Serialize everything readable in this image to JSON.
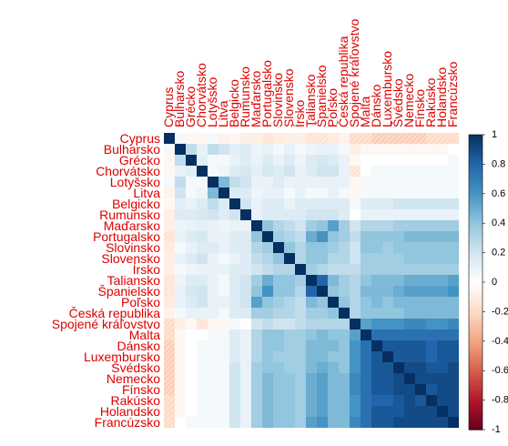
{
  "chart_data": {
    "type": "heatmap",
    "title": "",
    "labels": [
      "Cyprus",
      "Bulharsko",
      "Grécko",
      "Chorvátsko",
      "Lotyšsko",
      "Litva",
      "Belgicko",
      "Rumunsko",
      "Maďarsko",
      "Portugalsko",
      "Slovinsko",
      "Slovensko",
      "Írsko",
      "Taliansko",
      "Španielsko",
      "Poľsko",
      "Česká republika",
      "Spojené kráľovstvo",
      "Malta",
      "Dánsko",
      "Luxembursko",
      "Švédsko",
      "Nemecko",
      "Fínsko",
      "Rakúsko",
      "Holandsko",
      "Francúzsko"
    ],
    "value_range": [
      -1,
      1
    ],
    "color_scale": [
      "#67001f",
      "#b2182b",
      "#d6604d",
      "#f4a582",
      "#fddbc7",
      "#ffffff",
      "#d1e5f0",
      "#92c5de",
      "#4393c3",
      "#2166ac",
      "#053061"
    ],
    "legend_ticks": [
      "1",
      "0.8",
      "0.6",
      "0.4",
      "0.2",
      "0",
      "-0.2",
      "-0.4",
      "-0.6",
      "-0.8",
      "-1"
    ],
    "legend_placement": "right",
    "label_color": "#dd0000",
    "diagonal": 1,
    "lower_triangle_rows": [
      [],
      [
        0.05
      ],
      [
        -0.05,
        0.25
      ],
      [
        -0.05,
        0.1,
        0.12
      ],
      [
        0.05,
        0.25,
        0.05,
        0.05
      ],
      [
        -0.08,
        0.2,
        0.05,
        0.08,
        0.45
      ],
      [
        -0.05,
        0.12,
        0.1,
        0.15,
        0.25,
        0.15
      ],
      [
        -0.1,
        0.15,
        0.15,
        0.18,
        0.2,
        0.15,
        0.2
      ],
      [
        -0.1,
        0.08,
        0.1,
        0.12,
        0.1,
        0.08,
        0.1,
        0.1
      ],
      [
        -0.15,
        0.1,
        0.15,
        0.18,
        0.1,
        0.1,
        0.15,
        0.15,
        0.4
      ],
      [
        -0.12,
        0.05,
        0.1,
        0.15,
        0.15,
        0.1,
        0.15,
        0.15,
        0.3,
        0.35
      ],
      [
        -0.1,
        0.1,
        0.15,
        0.2,
        0.1,
        0.05,
        0.1,
        0.15,
        0.25,
        0.3,
        0.4
      ],
      [
        -0.1,
        0.05,
        0.08,
        0.1,
        0.1,
        0.1,
        0.15,
        0.15,
        0.2,
        0.25,
        0.3,
        0.3
      ],
      [
        -0.15,
        0.08,
        0.15,
        0.15,
        0.1,
        0.05,
        0.15,
        0.2,
        0.35,
        0.5,
        0.4,
        0.4,
        0.35
      ],
      [
        -0.15,
        0.1,
        0.18,
        0.2,
        0.1,
        0.05,
        0.15,
        0.2,
        0.4,
        0.6,
        0.4,
        0.4,
        0.3,
        0.8
      ],
      [
        -0.12,
        0.1,
        0.15,
        0.2,
        0.1,
        0.1,
        0.15,
        0.2,
        0.55,
        0.4,
        0.35,
        0.3,
        0.25,
        0.45,
        0.4
      ],
      [
        -0.08,
        0.05,
        0.1,
        0.1,
        0.1,
        0.05,
        0.15,
        0.15,
        0.35,
        0.35,
        0.3,
        0.3,
        0.25,
        0.35,
        0.35,
        0.4
      ],
      [
        -0.2,
        -0.1,
        -0.05,
        -0.15,
        -0.05,
        -0.05,
        0.05,
        0.0,
        0.2,
        0.25,
        0.2,
        0.2,
        0.25,
        0.3,
        0.3,
        0.3,
        0.3
      ],
      [
        -0.2,
        -0.05,
        0.0,
        0.0,
        0.05,
        0.05,
        0.15,
        0.1,
        0.3,
        0.4,
        0.4,
        0.35,
        0.35,
        0.4,
        0.45,
        0.4,
        0.4,
        0.55
      ],
      [
        -0.25,
        -0.05,
        0.0,
        0.05,
        0.05,
        0.05,
        0.15,
        0.1,
        0.3,
        0.4,
        0.4,
        0.35,
        0.35,
        0.45,
        0.45,
        0.45,
        0.4,
        0.6,
        0.75
      ],
      [
        -0.25,
        -0.05,
        0.0,
        0.05,
        0.05,
        0.05,
        0.15,
        0.1,
        0.3,
        0.4,
        0.35,
        0.35,
        0.35,
        0.45,
        0.45,
        0.4,
        0.4,
        0.6,
        0.75,
        0.85
      ],
      [
        -0.25,
        -0.05,
        0.0,
        0.05,
        0.05,
        0.05,
        0.2,
        0.1,
        0.35,
        0.4,
        0.4,
        0.35,
        0.35,
        0.45,
        0.5,
        0.45,
        0.4,
        0.6,
        0.75,
        0.85,
        0.85
      ],
      [
        -0.25,
        -0.05,
        0.0,
        0.05,
        0.05,
        0.05,
        0.2,
        0.1,
        0.35,
        0.45,
        0.4,
        0.4,
        0.35,
        0.5,
        0.55,
        0.45,
        0.45,
        0.65,
        0.75,
        0.85,
        0.85,
        0.9
      ],
      [
        -0.25,
        -0.05,
        0.0,
        0.05,
        0.05,
        0.05,
        0.2,
        0.1,
        0.35,
        0.45,
        0.4,
        0.4,
        0.35,
        0.5,
        0.55,
        0.45,
        0.45,
        0.65,
        0.75,
        0.85,
        0.85,
        0.9,
        0.9
      ],
      [
        -0.2,
        -0.05,
        0.0,
        0.05,
        0.05,
        0.05,
        0.2,
        0.1,
        0.35,
        0.45,
        0.4,
        0.4,
        0.35,
        0.5,
        0.55,
        0.45,
        0.45,
        0.6,
        0.75,
        0.8,
        0.8,
        0.85,
        0.9,
        0.85
      ],
      [
        -0.2,
        -0.05,
        0.0,
        0.05,
        0.05,
        0.05,
        0.2,
        0.1,
        0.35,
        0.45,
        0.4,
        0.4,
        0.35,
        0.5,
        0.55,
        0.45,
        0.45,
        0.6,
        0.75,
        0.85,
        0.85,
        0.85,
        0.9,
        0.9,
        0.9
      ],
      [
        -0.2,
        0.0,
        0.05,
        0.05,
        0.05,
        0.05,
        0.2,
        0.1,
        0.35,
        0.45,
        0.4,
        0.4,
        0.35,
        0.55,
        0.6,
        0.45,
        0.45,
        0.65,
        0.75,
        0.85,
        0.85,
        0.9,
        0.9,
        0.9,
        0.9,
        0.9
      ]
    ]
  }
}
